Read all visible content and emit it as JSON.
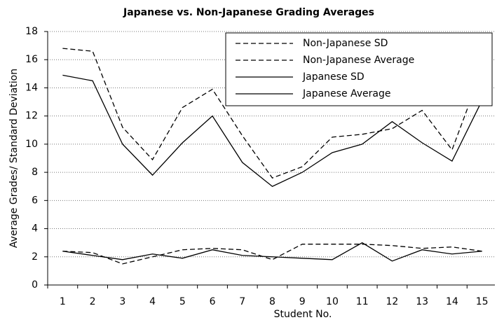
{
  "chart_data": {
    "type": "line",
    "title": "Japanese vs. Non-Japanese Grading Averages",
    "xlabel": "Student No.",
    "ylabel": "Average Grades/ Standard Deviation",
    "categories": [
      1,
      2,
      3,
      4,
      5,
      6,
      7,
      8,
      9,
      10,
      11,
      12,
      13,
      14,
      15
    ],
    "series": [
      {
        "name": "Non-Japanese SD",
        "color": "#000000",
        "dashed": true,
        "values": [
          2.4,
          2.3,
          1.5,
          2.0,
          2.5,
          2.6,
          2.5,
          1.8,
          2.9,
          2.9,
          2.9,
          2.8,
          2.6,
          2.7,
          2.4
        ]
      },
      {
        "name": "Non-Japanese Average",
        "color": "#000000",
        "dashed": true,
        "values": [
          16.8,
          16.6,
          11.2,
          8.9,
          12.6,
          13.9,
          10.6,
          7.6,
          8.4,
          10.5,
          10.7,
          11.1,
          12.4,
          9.6,
          15.3
        ]
      },
      {
        "name": "Japanese SD",
        "color": "#000000",
        "dashed": false,
        "values": [
          2.4,
          2.1,
          1.8,
          2.2,
          1.9,
          2.5,
          2.1,
          2.0,
          1.9,
          1.8,
          3.0,
          1.7,
          2.5,
          2.2,
          2.4
        ]
      },
      {
        "name": "Japanese Average",
        "color": "#000000",
        "dashed": false,
        "values": [
          14.9,
          14.5,
          10.0,
          7.8,
          10.1,
          12.0,
          8.7,
          7.0,
          8.0,
          9.4,
          10.0,
          11.6,
          10.1,
          8.8,
          13.1
        ]
      }
    ],
    "ylim": [
      0,
      18
    ],
    "yticks": [
      0,
      2,
      4,
      6,
      8,
      10,
      12,
      14,
      16,
      18
    ],
    "grid": true,
    "legend": "upper right"
  }
}
